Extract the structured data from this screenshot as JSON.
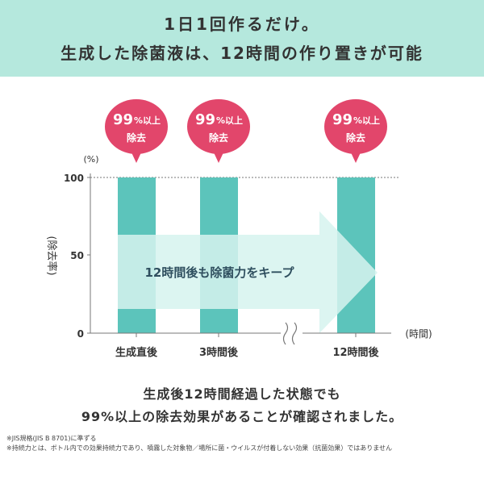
{
  "header": {
    "line1": "1日1回作るだけ。",
    "line2": "生成した除菌液は、12時間の作り置きが可能"
  },
  "chart_data": {
    "type": "bar",
    "categories": [
      "生成直後",
      "3時間後",
      "12時間後"
    ],
    "values": [
      100,
      100,
      100
    ],
    "ylim": [
      0,
      100
    ],
    "yticks": [
      "0",
      "50",
      "100"
    ],
    "yunit": "(%)",
    "ylabel": "(除去率)",
    "xlabel": "(時間)",
    "badges": [
      {
        "value": "99",
        "pct": "%以上",
        "label": "除去"
      },
      {
        "value": "99",
        "pct": "%以上",
        "label": "除去"
      },
      {
        "value": "99",
        "pct": "%以上",
        "label": "除去"
      }
    ],
    "arrow_text": "12時間後も除菌力をキープ",
    "colors": {
      "bar": "#5cc4bb",
      "arrow": "#d6f3ee",
      "badge": "#e2466b"
    }
  },
  "conclusion": {
    "line1": "生成後12時間経過した状態でも",
    "line2": "99%以上の除去効果があることが確認されました。"
  },
  "notes": [
    "※JIS規格(JIS B 8701)に準ずる",
    "※持続力とは、ボトル内での効果持続力であり、噴霧した対象物／場所に菌・ウイルスが付着しない効果（抗菌効果）ではありません"
  ]
}
